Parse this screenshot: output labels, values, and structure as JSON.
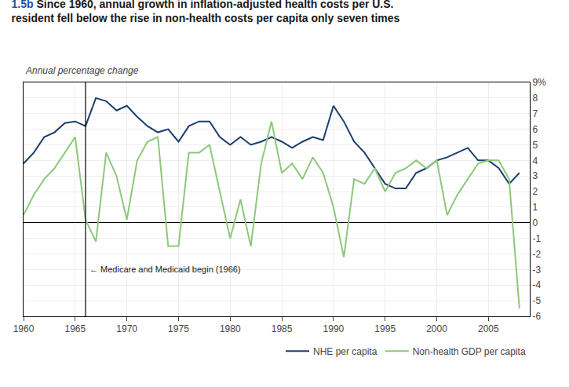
{
  "chart_data": {
    "type": "line",
    "title": "1.5b Since 1960, annual growth in inflation-adjusted health costs per U.S.\nresident fell below the rise in non-health costs per capita only seven times",
    "subtitle": "Annual percentage change",
    "x": [
      1960,
      1961,
      1962,
      1963,
      1964,
      1965,
      1966,
      1967,
      1968,
      1969,
      1970,
      1971,
      1972,
      1973,
      1974,
      1975,
      1976,
      1977,
      1978,
      1979,
      1980,
      1981,
      1982,
      1983,
      1984,
      1985,
      1986,
      1987,
      1988,
      1989,
      1990,
      1991,
      1992,
      1993,
      1994,
      1995,
      1996,
      1997,
      1998,
      1999,
      2000,
      2001,
      2002,
      2003,
      2004,
      2005,
      2006,
      2007,
      2008
    ],
    "series": [
      {
        "name": "NHE per capita",
        "color": "#1b3d6f",
        "values": [
          3.8,
          4.5,
          5.5,
          5.8,
          6.4,
          6.5,
          6.2,
          8.0,
          7.8,
          7.2,
          7.5,
          6.8,
          6.2,
          5.8,
          6.0,
          5.2,
          6.2,
          6.5,
          6.5,
          5.5,
          5.0,
          5.5,
          5.0,
          5.2,
          5.5,
          5.2,
          4.8,
          5.2,
          5.5,
          5.3,
          7.5,
          6.5,
          5.2,
          4.5,
          3.5,
          2.5,
          2.2,
          2.2,
          3.2,
          3.5,
          4.0,
          4.2,
          4.5,
          4.8,
          4.0,
          4.0,
          3.5,
          2.5,
          3.2
        ]
      },
      {
        "name": "Non-health GDP per capita",
        "color": "#8dc87a",
        "values": [
          0.5,
          1.8,
          2.8,
          3.5,
          4.5,
          5.5,
          0.2,
          -1.2,
          4.5,
          3.0,
          0.2,
          4.0,
          5.2,
          5.5,
          -1.5,
          -1.5,
          4.5,
          4.5,
          5.0,
          2.0,
          -1.0,
          1.5,
          -1.5,
          3.8,
          6.5,
          3.2,
          3.8,
          2.8,
          4.2,
          3.2,
          1.0,
          -2.2,
          2.8,
          2.5,
          3.5,
          2.0,
          3.2,
          3.5,
          4.0,
          3.5,
          4.0,
          0.5,
          1.8,
          2.8,
          3.8,
          4.0,
          4.0,
          2.8,
          -5.5
        ]
      }
    ],
    "xlim": [
      1960,
      2009
    ],
    "xticks": [
      1960,
      1965,
      1970,
      1975,
      1980,
      1985,
      1990,
      1995,
      2000,
      2005
    ],
    "ylim": [
      -6,
      9
    ],
    "yticks": [
      -6,
      -5,
      -4,
      -3,
      -2,
      -1,
      0,
      1,
      2,
      3,
      4,
      5,
      6,
      7,
      8,
      {
        "value": 9,
        "label": "9%"
      }
    ],
    "grid": true,
    "legend": "lower right",
    "annotations": [
      {
        "text": "← Medicare and Medicaid begin (1966)",
        "x": 1966
      }
    ]
  }
}
